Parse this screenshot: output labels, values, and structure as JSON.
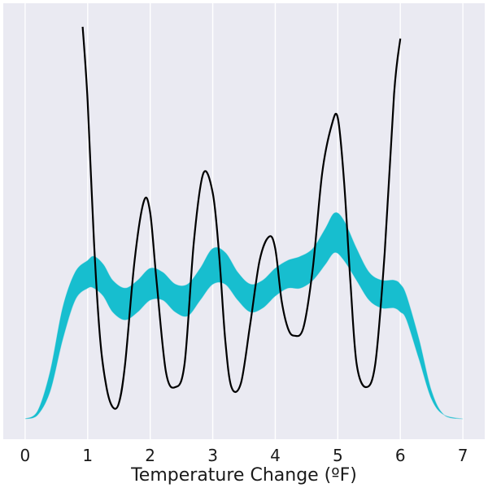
{
  "chart_data": {
    "type": "line",
    "title": "",
    "xlabel": "Temperature Change (ºF)",
    "ylabel": "",
    "xlim": [
      -0.35,
      7.35
    ],
    "ylim": [
      0,
      1
    ],
    "xticks": [
      0,
      1,
      2,
      3,
      4,
      5,
      6,
      7
    ],
    "grid": true,
    "colors": {
      "background": "#eaeaf2",
      "grid": "#ffffff",
      "band": "#17becf",
      "line": "#000000"
    },
    "series": [
      {
        "kind": "band",
        "x": [
          0.0,
          0.2,
          0.4,
          0.6,
          0.8,
          1.0,
          1.1,
          1.25,
          1.4,
          1.6,
          1.8,
          2.0,
          2.2,
          2.4,
          2.6,
          2.8,
          3.0,
          3.2,
          3.4,
          3.6,
          3.8,
          4.0,
          4.2,
          4.4,
          4.6,
          4.8,
          4.95,
          5.1,
          5.3,
          5.5,
          5.7,
          5.9,
          6.0,
          6.1,
          6.3,
          6.5,
          6.7,
          7.0
        ],
        "lower": [
          0.0,
          0.01,
          0.07,
          0.2,
          0.3,
          0.33,
          0.33,
          0.31,
          0.27,
          0.25,
          0.27,
          0.3,
          0.3,
          0.27,
          0.26,
          0.3,
          0.34,
          0.34,
          0.3,
          0.27,
          0.28,
          0.31,
          0.33,
          0.33,
          0.35,
          0.39,
          0.42,
          0.4,
          0.35,
          0.3,
          0.28,
          0.28,
          0.27,
          0.25,
          0.15,
          0.05,
          0.01,
          0.0
        ],
        "upper": [
          0.0,
          0.02,
          0.12,
          0.28,
          0.37,
          0.4,
          0.41,
          0.39,
          0.35,
          0.33,
          0.35,
          0.38,
          0.37,
          0.34,
          0.34,
          0.38,
          0.43,
          0.42,
          0.37,
          0.34,
          0.35,
          0.38,
          0.4,
          0.41,
          0.43,
          0.48,
          0.52,
          0.5,
          0.43,
          0.37,
          0.35,
          0.35,
          0.34,
          0.31,
          0.2,
          0.07,
          0.01,
          0.0
        ]
      },
      {
        "kind": "line",
        "x": [
          0.92,
          1.0,
          1.1,
          1.2,
          1.3,
          1.4,
          1.5,
          1.6,
          1.75,
          1.9,
          2.0,
          2.1,
          2.25,
          2.4,
          2.55,
          2.7,
          2.85,
          3.0,
          3.1,
          3.2,
          3.3,
          3.45,
          3.6,
          3.75,
          3.9,
          4.0,
          4.1,
          4.2,
          4.3,
          4.45,
          4.6,
          4.75,
          4.9,
          5.0,
          5.1,
          5.2,
          5.3,
          5.45,
          5.6,
          5.75,
          5.9,
          6.0
        ],
        "y": [
          0.99,
          0.8,
          0.45,
          0.2,
          0.08,
          0.03,
          0.04,
          0.14,
          0.4,
          0.55,
          0.52,
          0.35,
          0.12,
          0.08,
          0.14,
          0.45,
          0.62,
          0.57,
          0.42,
          0.2,
          0.08,
          0.09,
          0.24,
          0.4,
          0.46,
          0.43,
          0.3,
          0.23,
          0.21,
          0.23,
          0.38,
          0.62,
          0.74,
          0.76,
          0.6,
          0.35,
          0.14,
          0.08,
          0.14,
          0.42,
          0.82,
          0.96
        ]
      }
    ]
  }
}
